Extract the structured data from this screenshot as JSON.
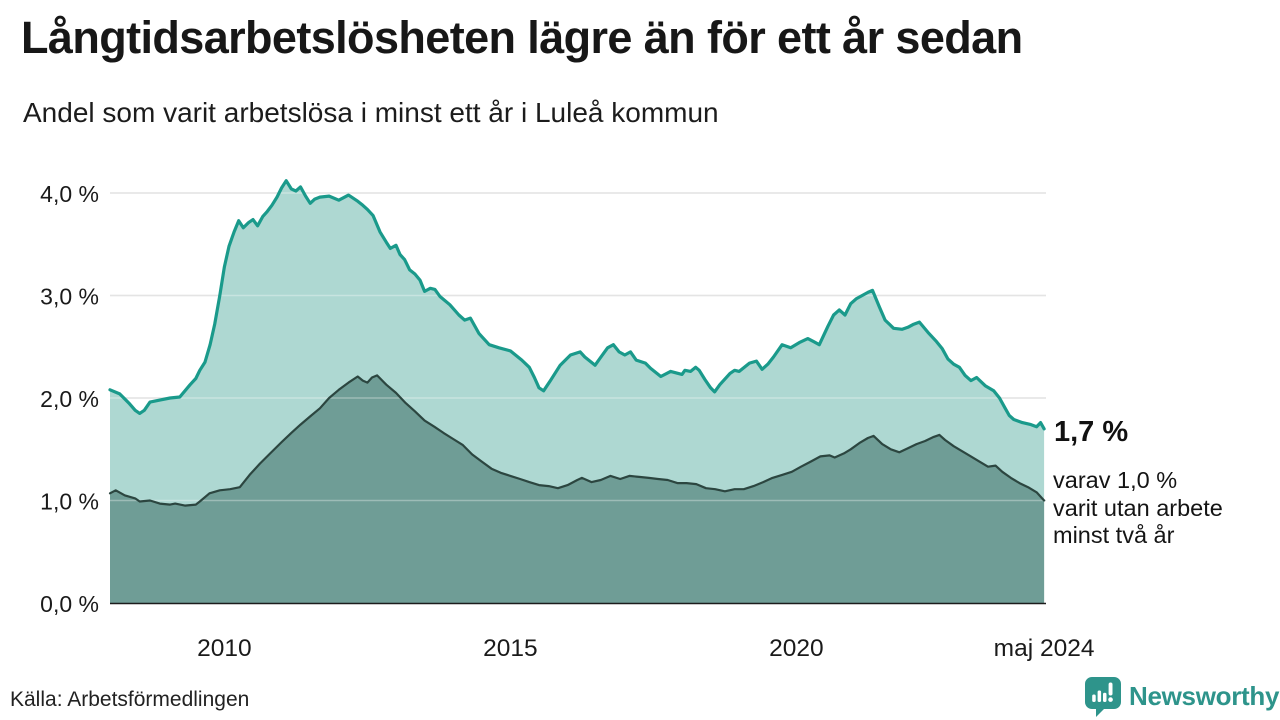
{
  "header": {
    "title": "Långtidsarbetslösheten lägre än för ett år sedan",
    "subtitle": "Andel som varit arbetslösa i minst ett år i Luleå kommun"
  },
  "chart_data": {
    "type": "area",
    "title": "Långtidsarbetslösheten lägre än för ett år sedan",
    "subtitle": "Andel som varit arbetslösa i minst ett år i Luleå kommun",
    "unit": "%",
    "xlim": [
      2008,
      2024.42
    ],
    "ylim": [
      0,
      4.3
    ],
    "grid": true,
    "legend": "none",
    "y_ticks": [
      {
        "value": 0,
        "label": "0,0 %"
      },
      {
        "value": 1,
        "label": "1,0 %"
      },
      {
        "value": 2,
        "label": "2,0 %"
      },
      {
        "value": 3,
        "label": "3,0 %"
      },
      {
        "value": 4,
        "label": "4,0 %"
      }
    ],
    "x_ticks": [
      {
        "value": 2010,
        "label": "2010"
      },
      {
        "value": 2015,
        "label": "2015"
      },
      {
        "value": 2020,
        "label": "2020"
      },
      {
        "value": 2024.33,
        "label": "maj 2024"
      }
    ],
    "series": [
      {
        "name": "Arbetslösa minst ett år",
        "line_color": "#1a9a8b",
        "fill_color": "#aed8d2",
        "line_width": 3.2,
        "latest_value": 1.7,
        "points": [
          [
            2008.0,
            2.08
          ],
          [
            2008.17,
            2.04
          ],
          [
            2008.33,
            1.95
          ],
          [
            2008.44,
            1.88
          ],
          [
            2008.52,
            1.85
          ],
          [
            2008.6,
            1.88
          ],
          [
            2008.7,
            1.96
          ],
          [
            2008.87,
            1.98
          ],
          [
            2009.05,
            2.0
          ],
          [
            2009.22,
            2.01
          ],
          [
            2009.4,
            2.13
          ],
          [
            2009.5,
            2.19
          ],
          [
            2009.57,
            2.27
          ],
          [
            2009.66,
            2.35
          ],
          [
            2009.75,
            2.52
          ],
          [
            2009.83,
            2.72
          ],
          [
            2009.92,
            3.0
          ],
          [
            2010.0,
            3.28
          ],
          [
            2010.08,
            3.48
          ],
          [
            2010.17,
            3.62
          ],
          [
            2010.25,
            3.73
          ],
          [
            2010.33,
            3.66
          ],
          [
            2010.42,
            3.71
          ],
          [
            2010.5,
            3.74
          ],
          [
            2010.58,
            3.68
          ],
          [
            2010.67,
            3.77
          ],
          [
            2010.75,
            3.82
          ],
          [
            2010.83,
            3.88
          ],
          [
            2010.92,
            3.96
          ],
          [
            2011.0,
            4.05
          ],
          [
            2011.08,
            4.12
          ],
          [
            2011.17,
            4.04
          ],
          [
            2011.25,
            4.02
          ],
          [
            2011.33,
            4.06
          ],
          [
            2011.42,
            3.97
          ],
          [
            2011.5,
            3.9
          ],
          [
            2011.58,
            3.94
          ],
          [
            2011.67,
            3.96
          ],
          [
            2011.83,
            3.97
          ],
          [
            2012.0,
            3.93
          ],
          [
            2012.17,
            3.98
          ],
          [
            2012.33,
            3.92
          ],
          [
            2012.42,
            3.88
          ],
          [
            2012.5,
            3.84
          ],
          [
            2012.6,
            3.78
          ],
          [
            2012.72,
            3.62
          ],
          [
            2012.83,
            3.52
          ],
          [
            2012.9,
            3.46
          ],
          [
            2013.0,
            3.49
          ],
          [
            2013.07,
            3.4
          ],
          [
            2013.15,
            3.35
          ],
          [
            2013.24,
            3.25
          ],
          [
            2013.33,
            3.21
          ],
          [
            2013.42,
            3.15
          ],
          [
            2013.5,
            3.04
          ],
          [
            2013.6,
            3.07
          ],
          [
            2013.68,
            3.06
          ],
          [
            2013.77,
            2.99
          ],
          [
            2013.94,
            2.91
          ],
          [
            2014.1,
            2.81
          ],
          [
            2014.2,
            2.76
          ],
          [
            2014.3,
            2.78
          ],
          [
            2014.45,
            2.63
          ],
          [
            2014.63,
            2.52
          ],
          [
            2014.8,
            2.49
          ],
          [
            2015.0,
            2.46
          ],
          [
            2015.2,
            2.37
          ],
          [
            2015.33,
            2.3
          ],
          [
            2015.42,
            2.2
          ],
          [
            2015.5,
            2.1
          ],
          [
            2015.58,
            2.07
          ],
          [
            2015.7,
            2.17
          ],
          [
            2015.87,
            2.32
          ],
          [
            2016.05,
            2.42
          ],
          [
            2016.22,
            2.45
          ],
          [
            2016.3,
            2.4
          ],
          [
            2016.48,
            2.32
          ],
          [
            2016.57,
            2.39
          ],
          [
            2016.7,
            2.49
          ],
          [
            2016.8,
            2.52
          ],
          [
            2016.9,
            2.45
          ],
          [
            2017.0,
            2.42
          ],
          [
            2017.1,
            2.45
          ],
          [
            2017.2,
            2.37
          ],
          [
            2017.36,
            2.34
          ],
          [
            2017.45,
            2.29
          ],
          [
            2017.63,
            2.21
          ],
          [
            2017.8,
            2.26
          ],
          [
            2018.0,
            2.23
          ],
          [
            2018.05,
            2.27
          ],
          [
            2018.15,
            2.26
          ],
          [
            2018.24,
            2.3
          ],
          [
            2018.3,
            2.27
          ],
          [
            2018.4,
            2.18
          ],
          [
            2018.5,
            2.1
          ],
          [
            2018.57,
            2.06
          ],
          [
            2018.66,
            2.13
          ],
          [
            2018.84,
            2.24
          ],
          [
            2018.92,
            2.27
          ],
          [
            2019.0,
            2.26
          ],
          [
            2019.18,
            2.34
          ],
          [
            2019.3,
            2.36
          ],
          [
            2019.4,
            2.28
          ],
          [
            2019.5,
            2.33
          ],
          [
            2019.6,
            2.4
          ],
          [
            2019.75,
            2.52
          ],
          [
            2019.9,
            2.49
          ],
          [
            2020.05,
            2.54
          ],
          [
            2020.2,
            2.58
          ],
          [
            2020.3,
            2.55
          ],
          [
            2020.4,
            2.52
          ],
          [
            2020.55,
            2.7
          ],
          [
            2020.65,
            2.81
          ],
          [
            2020.75,
            2.86
          ],
          [
            2020.85,
            2.81
          ],
          [
            2020.95,
            2.92
          ],
          [
            2021.05,
            2.97
          ],
          [
            2021.15,
            3.0
          ],
          [
            2021.25,
            3.03
          ],
          [
            2021.33,
            3.05
          ],
          [
            2021.45,
            2.89
          ],
          [
            2021.55,
            2.76
          ],
          [
            2021.7,
            2.68
          ],
          [
            2021.85,
            2.67
          ],
          [
            2021.95,
            2.69
          ],
          [
            2022.05,
            2.72
          ],
          [
            2022.15,
            2.74
          ],
          [
            2022.3,
            2.64
          ],
          [
            2022.45,
            2.55
          ],
          [
            2022.55,
            2.48
          ],
          [
            2022.65,
            2.38
          ],
          [
            2022.75,
            2.33
          ],
          [
            2022.85,
            2.3
          ],
          [
            2022.95,
            2.22
          ],
          [
            2023.05,
            2.17
          ],
          [
            2023.15,
            2.2
          ],
          [
            2023.3,
            2.12
          ],
          [
            2023.45,
            2.07
          ],
          [
            2023.55,
            2.0
          ],
          [
            2023.65,
            1.9
          ],
          [
            2023.72,
            1.83
          ],
          [
            2023.8,
            1.79
          ],
          [
            2023.95,
            1.76
          ],
          [
            2024.1,
            1.74
          ],
          [
            2024.2,
            1.72
          ],
          [
            2024.27,
            1.76
          ],
          [
            2024.33,
            1.7
          ]
        ]
      },
      {
        "name": "Utan arbete minst två år",
        "line_color": "#2c4640",
        "fill_color": "#6f9d96",
        "line_width": 2.2,
        "latest_value": 1.0,
        "points": [
          [
            2008.0,
            1.07
          ],
          [
            2008.1,
            1.1
          ],
          [
            2008.26,
            1.05
          ],
          [
            2008.44,
            1.02
          ],
          [
            2008.52,
            0.99
          ],
          [
            2008.7,
            1.0
          ],
          [
            2008.87,
            0.97
          ],
          [
            2009.05,
            0.96
          ],
          [
            2009.14,
            0.97
          ],
          [
            2009.31,
            0.95
          ],
          [
            2009.5,
            0.96
          ],
          [
            2009.57,
            0.99
          ],
          [
            2009.74,
            1.07
          ],
          [
            2009.92,
            1.1
          ],
          [
            2010.1,
            1.11
          ],
          [
            2010.27,
            1.13
          ],
          [
            2010.44,
            1.25
          ],
          [
            2010.62,
            1.36
          ],
          [
            2010.8,
            1.46
          ],
          [
            2011.0,
            1.57
          ],
          [
            2011.17,
            1.66
          ],
          [
            2011.33,
            1.74
          ],
          [
            2011.5,
            1.82
          ],
          [
            2011.67,
            1.9
          ],
          [
            2011.83,
            2.0
          ],
          [
            2012.0,
            2.08
          ],
          [
            2012.17,
            2.15
          ],
          [
            2012.33,
            2.21
          ],
          [
            2012.42,
            2.17
          ],
          [
            2012.5,
            2.15
          ],
          [
            2012.58,
            2.2
          ],
          [
            2012.67,
            2.22
          ],
          [
            2012.83,
            2.13
          ],
          [
            2013.0,
            2.05
          ],
          [
            2013.17,
            1.95
          ],
          [
            2013.33,
            1.87
          ],
          [
            2013.5,
            1.78
          ],
          [
            2013.67,
            1.72
          ],
          [
            2013.83,
            1.66
          ],
          [
            2014.0,
            1.6
          ],
          [
            2014.17,
            1.54
          ],
          [
            2014.33,
            1.45
          ],
          [
            2014.5,
            1.38
          ],
          [
            2014.67,
            1.31
          ],
          [
            2014.83,
            1.27
          ],
          [
            2015.0,
            1.24
          ],
          [
            2015.17,
            1.21
          ],
          [
            2015.33,
            1.18
          ],
          [
            2015.5,
            1.15
          ],
          [
            2015.67,
            1.14
          ],
          [
            2015.83,
            1.12
          ],
          [
            2016.0,
            1.15
          ],
          [
            2016.17,
            1.2
          ],
          [
            2016.25,
            1.22
          ],
          [
            2016.42,
            1.18
          ],
          [
            2016.58,
            1.2
          ],
          [
            2016.75,
            1.24
          ],
          [
            2016.92,
            1.21
          ],
          [
            2017.08,
            1.24
          ],
          [
            2017.25,
            1.23
          ],
          [
            2017.42,
            1.22
          ],
          [
            2017.58,
            1.21
          ],
          [
            2017.75,
            1.2
          ],
          [
            2017.92,
            1.17
          ],
          [
            2018.08,
            1.17
          ],
          [
            2018.25,
            1.16
          ],
          [
            2018.42,
            1.12
          ],
          [
            2018.58,
            1.11
          ],
          [
            2018.75,
            1.09
          ],
          [
            2018.92,
            1.11
          ],
          [
            2019.08,
            1.11
          ],
          [
            2019.25,
            1.14
          ],
          [
            2019.42,
            1.18
          ],
          [
            2019.58,
            1.22
          ],
          [
            2019.75,
            1.25
          ],
          [
            2019.92,
            1.28
          ],
          [
            2020.08,
            1.33
          ],
          [
            2020.25,
            1.38
          ],
          [
            2020.42,
            1.43
          ],
          [
            2020.58,
            1.44
          ],
          [
            2020.67,
            1.42
          ],
          [
            2020.83,
            1.46
          ],
          [
            2020.95,
            1.5
          ],
          [
            2021.1,
            1.56
          ],
          [
            2021.25,
            1.61
          ],
          [
            2021.35,
            1.63
          ],
          [
            2021.5,
            1.55
          ],
          [
            2021.65,
            1.5
          ],
          [
            2021.8,
            1.47
          ],
          [
            2021.95,
            1.51
          ],
          [
            2022.1,
            1.55
          ],
          [
            2022.25,
            1.58
          ],
          [
            2022.4,
            1.62
          ],
          [
            2022.5,
            1.64
          ],
          [
            2022.6,
            1.59
          ],
          [
            2022.75,
            1.53
          ],
          [
            2022.9,
            1.48
          ],
          [
            2023.05,
            1.43
          ],
          [
            2023.2,
            1.38
          ],
          [
            2023.35,
            1.33
          ],
          [
            2023.48,
            1.34
          ],
          [
            2023.6,
            1.28
          ],
          [
            2023.75,
            1.22
          ],
          [
            2023.9,
            1.17
          ],
          [
            2024.05,
            1.13
          ],
          [
            2024.2,
            1.08
          ],
          [
            2024.33,
            1.0
          ]
        ]
      }
    ],
    "annotations": {
      "end_label": "1,7 %",
      "end_sub_lines": [
        "varav 1,0 %",
        "varit utan arbete",
        "minst två år"
      ]
    }
  },
  "footer": {
    "source": "Källa: Arbetsförmedlingen",
    "brand": "Newsworthy"
  },
  "colors": {
    "accent_teal": "#1a9a8b",
    "light_fill": "#aed8d2",
    "dark_fill": "#6f9d96",
    "dark_line": "#2c4640",
    "brand_teal": "#2e948b",
    "grid": "#d8d8d8",
    "axis": "#1c1c1c",
    "text": "#1a1a1a"
  }
}
